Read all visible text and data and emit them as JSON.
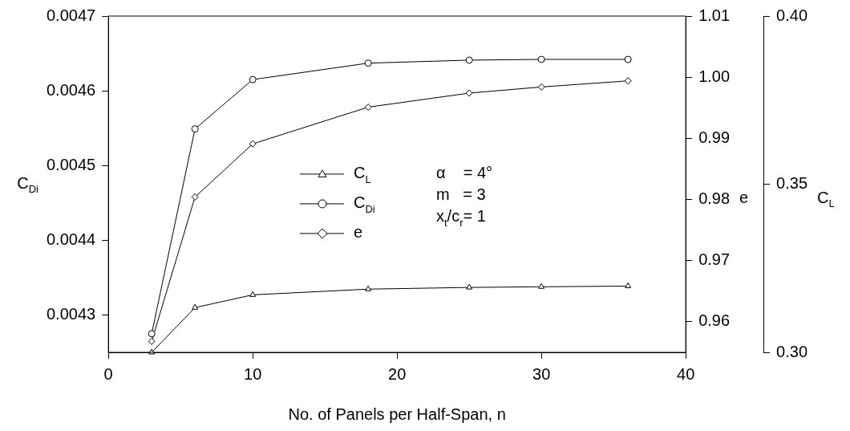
{
  "chart_data": {
    "type": "line",
    "xlabel": "No. of Panels per Half-Span, n",
    "ylabel": "C$_{Di}$",
    "y2label": "e",
    "y3label": "C$_{L}$",
    "x": [
      3,
      6,
      10,
      18,
      25,
      30,
      36
    ],
    "xlim": [
      0,
      40
    ],
    "xticks": [
      0,
      10,
      20,
      30,
      40
    ],
    "ylim": [
      0.00425,
      0.0047
    ],
    "yticks": [
      0.0043,
      0.0044,
      0.0045,
      0.0046,
      0.0047
    ],
    "y2lim": [
      0.955,
      1.01
    ],
    "y2ticks": [
      0.96,
      0.97,
      0.98,
      0.99,
      {
        "value": 1,
        "label": "1.00"
      },
      1.01
    ],
    "y3lim": [
      0.3,
      0.4
    ],
    "y3ticks": [
      {
        "value": 0.3,
        "label": "0.30"
      },
      0.35,
      {
        "value": 0.4,
        "label": "0.40"
      }
    ],
    "series": [
      {
        "name": "C$_{L}$",
        "color": "#000000",
        "marker": "triangle",
        "axis": "y3",
        "values": [
          0.3,
          0.3133,
          0.3171,
          0.3188,
          0.3193,
          0.3195,
          0.3197
        ]
      },
      {
        "name": "C$_{Di}$",
        "color": "#000000",
        "marker": "circle",
        "values": [
          0.004275,
          0.004549,
          0.004615,
          0.004637,
          0.004641,
          0.004642,
          0.004642
        ]
      },
      {
        "name": "e",
        "color": "#000000",
        "marker": "diamond",
        "axis": "y2",
        "values": [
          0.9568,
          0.9804,
          0.9891,
          0.9951,
          0.9974,
          0.9984,
          0.9994
        ]
      }
    ],
    "annotations": [
      "α    = 4°",
      "m   = 3",
      "x$_{t}$/c$_{r}$= 1"
    ],
    "legend": "center",
    "grid": false,
    "line_style": "solid"
  }
}
